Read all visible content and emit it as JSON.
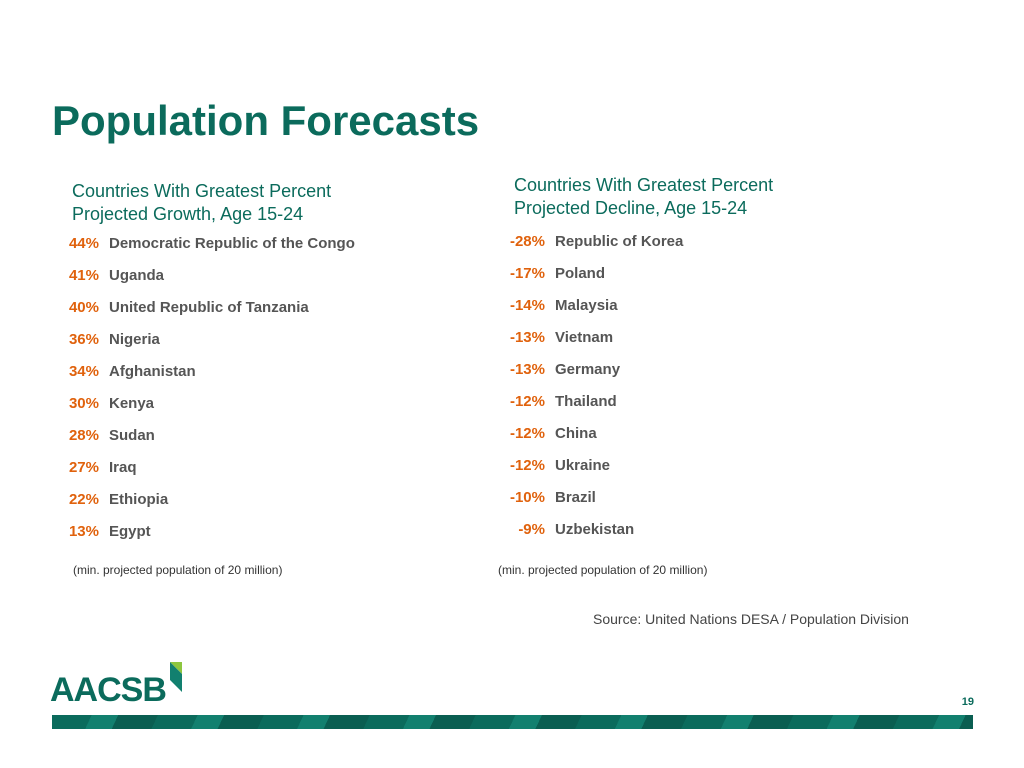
{
  "title": "Population Forecasts",
  "growth": {
    "heading_line1": "Countries With Greatest Percent",
    "heading_line2": "Projected Growth, Age 15-24",
    "items": [
      {
        "pct": "44%",
        "country": "Democratic Republic of the Congo"
      },
      {
        "pct": "41%",
        "country": "Uganda"
      },
      {
        "pct": "40%",
        "country": "United Republic of Tanzania"
      },
      {
        "pct": "36%",
        "country": "Nigeria"
      },
      {
        "pct": "34%",
        "country": "Afghanistan"
      },
      {
        "pct": "30%",
        "country": "Kenya"
      },
      {
        "pct": "28%",
        "country": "Sudan"
      },
      {
        "pct": "27%",
        "country": "Iraq"
      },
      {
        "pct": "22%",
        "country": "Ethiopia"
      },
      {
        "pct": "13%",
        "country": "Egypt"
      }
    ],
    "note": "(min. projected population of 20 million)"
  },
  "decline": {
    "heading_line1": "Countries With Greatest Percent",
    "heading_line2": "Projected Decline, Age 15-24",
    "items": [
      {
        "pct": "-28%",
        "country": "Republic of Korea"
      },
      {
        "pct": "-17%",
        "country": "Poland"
      },
      {
        "pct": "-14%",
        "country": "Malaysia"
      },
      {
        "pct": "-13%",
        "country": "Vietnam"
      },
      {
        "pct": "-13%",
        "country": "Germany"
      },
      {
        "pct": "-12%",
        "country": "Thailand"
      },
      {
        "pct": "-12%",
        "country": "China"
      },
      {
        "pct": "-12%",
        "country": "Ukraine"
      },
      {
        "pct": "-10%",
        "country": "Brazil"
      },
      {
        "pct": "-9%",
        "country": "Uzbekistan"
      }
    ],
    "note": "(min. projected population of 20 million)"
  },
  "source": "Source: United Nations DESA / Population Division",
  "logo": "AACSB",
  "page_number": "19",
  "colors": {
    "brand": "#0b6b5c",
    "accent": "#e0620d",
    "logo_mark_light": "#8dc63f"
  }
}
